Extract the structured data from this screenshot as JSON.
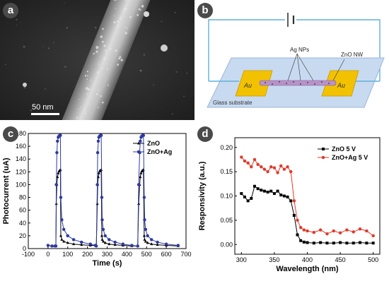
{
  "panels": {
    "a": {
      "label": "a",
      "scale_bar_text": "50 nm"
    },
    "b": {
      "label": "b",
      "ag_nps_label": "Ag NPs",
      "zno_nw_label": "ZnO NW",
      "electrode_left": "Au",
      "electrode_right": "Au",
      "substrate_label": "Glass substrate",
      "colors": {
        "wire": "#5fb0d8",
        "substrate": "#c8daf0",
        "electrode": "#f2c200"
      }
    },
    "c": {
      "label": "c"
    },
    "d": {
      "label": "d"
    }
  },
  "chart_data": [
    {
      "type": "line",
      "panel": "c",
      "xlabel": "Time (s)",
      "ylabel": "Photocurrent (uA)",
      "xlim": [
        -100,
        700
      ],
      "ylim": [
        0,
        180
      ],
      "xticks": [
        -100,
        0,
        100,
        200,
        300,
        400,
        500,
        600,
        700
      ],
      "yticks": [
        0,
        20,
        40,
        60,
        80,
        100,
        120,
        140,
        160,
        180
      ],
      "legend_position": "top-right",
      "series": [
        {
          "name": "ZnO",
          "color": "#000000",
          "marker": "triangle",
          "x": [
            0,
            20,
            35,
            40,
            42,
            45,
            48,
            52,
            56,
            60,
            63,
            65,
            70,
            80,
            100,
            130,
            170,
            215,
            240,
            245,
            250,
            252,
            255,
            258,
            262,
            266,
            270,
            273,
            275,
            280,
            290,
            310,
            340,
            380,
            425,
            455,
            460,
            465,
            468,
            472,
            476,
            480,
            484,
            488,
            490,
            495,
            505,
            525,
            555,
            600,
            660
          ],
          "y": [
            5,
            4,
            4,
            4,
            70,
            100,
            112,
            118,
            121,
            122,
            123,
            20,
            14,
            11,
            9,
            7,
            6,
            5,
            5,
            4,
            70,
            100,
            112,
            118,
            121,
            122,
            123,
            20,
            14,
            11,
            9,
            7,
            6,
            5,
            4,
            4,
            70,
            100,
            112,
            118,
            121,
            122,
            123,
            20,
            14,
            11,
            9,
            7,
            6,
            5,
            4
          ]
        },
        {
          "name": "ZnO+Ag",
          "color": "#2e3aa0",
          "marker": "circle",
          "x": [
            0,
            20,
            35,
            40,
            42,
            45,
            48,
            52,
            56,
            60,
            63,
            65,
            70,
            80,
            100,
            130,
            170,
            215,
            240,
            245,
            250,
            252,
            255,
            258,
            262,
            266,
            270,
            273,
            275,
            280,
            290,
            310,
            340,
            380,
            425,
            455,
            460,
            465,
            468,
            472,
            476,
            480,
            484,
            488,
            490,
            495,
            505,
            525,
            555,
            600,
            660
          ],
          "y": [
            5,
            4,
            4,
            4,
            100,
            150,
            168,
            174,
            176,
            177,
            177,
            80,
            45,
            30,
            20,
            14,
            10,
            7,
            5,
            4,
            100,
            150,
            168,
            174,
            176,
            177,
            177,
            80,
            45,
            30,
            20,
            14,
            10,
            7,
            5,
            4,
            100,
            150,
            168,
            174,
            176,
            177,
            177,
            80,
            45,
            30,
            20,
            14,
            10,
            7,
            5
          ]
        }
      ]
    },
    {
      "type": "line",
      "panel": "d",
      "xlabel": "Wavelength (nm)",
      "ylabel": "Responsivity (a.u.)",
      "xlim": [
        290,
        510
      ],
      "ylim": [
        -0.02,
        0.22
      ],
      "xticks": [
        300,
        350,
        400,
        450,
        500
      ],
      "yticks": [
        0.0,
        0.05,
        0.1,
        0.15,
        0.2
      ],
      "ytick_labels": [
        "0.00",
        "0.05",
        "0.10",
        "0.15",
        "0.20"
      ],
      "legend_position": "top-right",
      "series": [
        {
          "name": "ZnO 5 V",
          "color": "#000000",
          "marker": "square",
          "x": [
            300,
            305,
            310,
            315,
            320,
            325,
            330,
            335,
            340,
            345,
            350,
            355,
            360,
            365,
            370,
            375,
            380,
            385,
            390,
            395,
            400,
            410,
            420,
            430,
            440,
            450,
            460,
            470,
            480,
            490,
            500
          ],
          "y": [
            0.105,
            0.098,
            0.09,
            0.095,
            0.12,
            0.115,
            0.112,
            0.11,
            0.108,
            0.11,
            0.105,
            0.11,
            0.102,
            0.1,
            0.098,
            0.09,
            0.06,
            0.02,
            0.008,
            0.005,
            0.004,
            0.003,
            0.004,
            0.003,
            0.003,
            0.004,
            0.003,
            0.003,
            0.004,
            0.003,
            0.003
          ]
        },
        {
          "name": "ZnO+Ag 5 V",
          "color": "#e03a2a",
          "marker": "circle",
          "x": [
            300,
            305,
            310,
            315,
            320,
            325,
            330,
            335,
            340,
            345,
            350,
            355,
            360,
            365,
            370,
            375,
            380,
            385,
            390,
            395,
            400,
            410,
            420,
            430,
            440,
            450,
            460,
            470,
            480,
            490,
            500
          ],
          "y": [
            0.18,
            0.172,
            0.168,
            0.16,
            0.175,
            0.165,
            0.16,
            0.155,
            0.15,
            0.16,
            0.158,
            0.148,
            0.162,
            0.155,
            0.16,
            0.15,
            0.09,
            0.05,
            0.035,
            0.03,
            0.028,
            0.025,
            0.03,
            0.022,
            0.028,
            0.024,
            0.03,
            0.026,
            0.032,
            0.028,
            0.018
          ]
        }
      ]
    }
  ]
}
